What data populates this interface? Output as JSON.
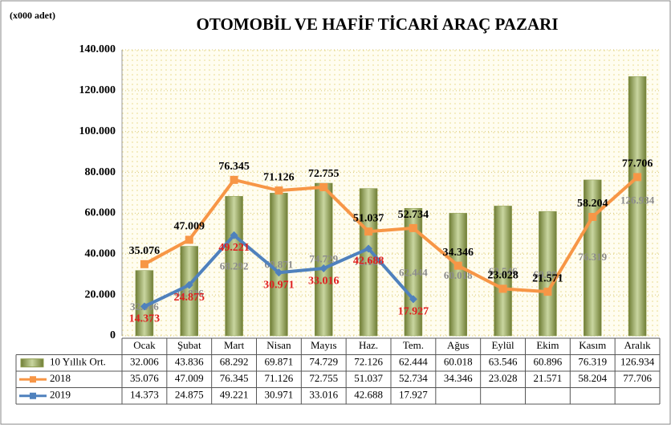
{
  "chart_data": {
    "type": "bar-line",
    "title": "OTOMOBİL VE HAFİF TİCARİ ARAÇ PAZARI",
    "unit_label": "(x000 adet)",
    "categories": [
      "Ocak",
      "Şubat",
      "Mart",
      "Nisan",
      "Mayıs",
      "Haz.",
      "Tem.",
      "Ağus",
      "Eylül",
      "Ekim",
      "Kasım",
      "Aralık"
    ],
    "ylim": [
      0,
      140000
    ],
    "yticks": [
      0,
      {
        "value": 20000,
        "label": "20.000"
      },
      {
        "value": 40000,
        "label": "40.000"
      },
      {
        "value": 60000,
        "label": "60.000"
      },
      {
        "value": 80000,
        "label": "80.000"
      },
      {
        "value": 100000,
        "label": "100.000"
      },
      {
        "value": 120000,
        "label": "120.000"
      },
      {
        "value": 140000,
        "label": "140.000"
      }
    ],
    "grid": true,
    "series": [
      {
        "name": "10 Yıllık Ort.",
        "kind": "bar",
        "color": "#8d9c4c",
        "values": [
          32006,
          43836,
          68292,
          69871,
          74729,
          72126,
          62444,
          60018,
          63546,
          60896,
          76319,
          126934
        ],
        "value_labels": [
          "32.006",
          "43.836",
          "68.292",
          "69.871",
          "74.729",
          "72.126",
          "62.444",
          "60.018",
          "63.546",
          "60.896",
          "76.319",
          "126.934"
        ]
      },
      {
        "name": "2018",
        "kind": "line",
        "color": "#f79646",
        "values": [
          35076,
          47009,
          76345,
          71126,
          72755,
          51037,
          52734,
          34346,
          23028,
          21571,
          58204,
          77706
        ],
        "value_labels": [
          "35.076",
          "47.009",
          "76.345",
          "71.126",
          "72.755",
          "51.037",
          "52.734",
          "34.346",
          "23.028",
          "21.571",
          "58.204",
          "77.706"
        ]
      },
      {
        "name": "2019",
        "kind": "line",
        "color": "#4f81bd",
        "values": [
          14373,
          24875,
          49221,
          30971,
          33016,
          42688,
          17927,
          null,
          null,
          null,
          null,
          null
        ],
        "value_labels": [
          "14.373",
          "24.875",
          "49.221",
          "30.971",
          "33.016",
          "42.688",
          "17.927",
          null,
          null,
          null,
          null,
          null
        ]
      }
    ]
  }
}
